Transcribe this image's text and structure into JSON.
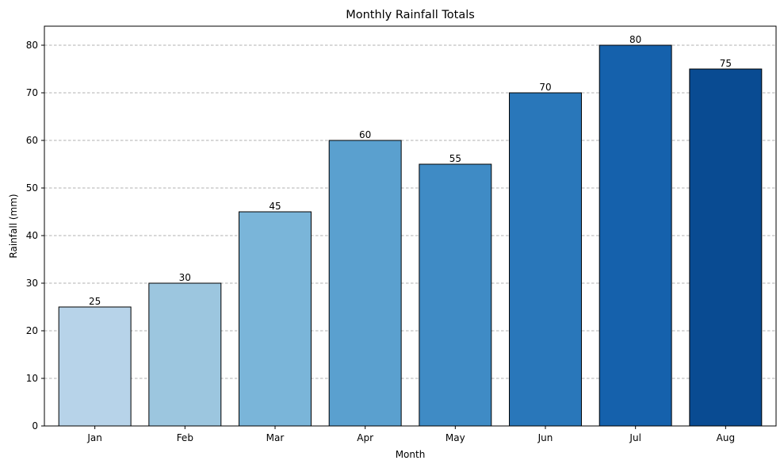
{
  "chart_data": {
    "type": "bar",
    "title": "Monthly Rainfall Totals",
    "xlabel": "Month",
    "ylabel": "Rainfall (mm)",
    "categories": [
      "Jan",
      "Feb",
      "Mar",
      "Apr",
      "May",
      "Jun",
      "Jul",
      "Aug"
    ],
    "values": [
      25,
      30,
      45,
      60,
      55,
      70,
      80,
      75
    ],
    "data_labels": [
      "25",
      "30",
      "45",
      "60",
      "55",
      "70",
      "80",
      "75"
    ],
    "ylim": [
      0,
      84
    ],
    "yticks": [
      0,
      10,
      20,
      30,
      40,
      50,
      60,
      70,
      80
    ],
    "grid": "y-axis, dashed",
    "legend": "none",
    "bar_colors": [
      "#b7d3e9",
      "#9cc6df",
      "#7ab5d9",
      "#5aa0cf",
      "#3f8bc5",
      "#2977ba",
      "#1561ac",
      "#094b92"
    ],
    "bar_edge_color": "#000000"
  }
}
